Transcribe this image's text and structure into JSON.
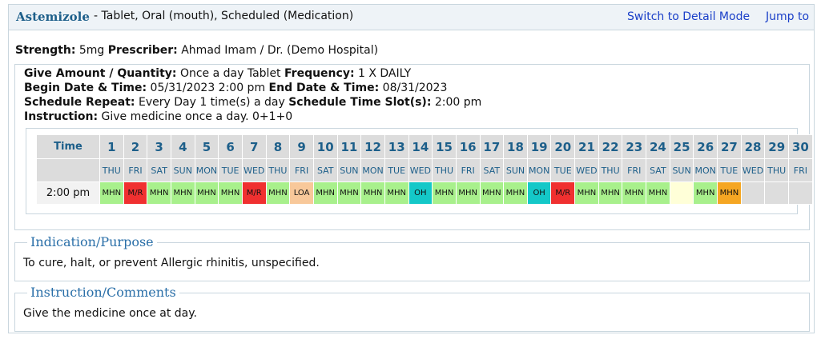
{
  "header": {
    "drug": "Astemizole",
    "description": "- Tablet, Oral (mouth), Scheduled (Medication)",
    "links": [
      "Switch to Detail Mode",
      "Jump to"
    ]
  },
  "summary": [
    {
      "label": "Strength:",
      "value": "5mg"
    },
    {
      "label": "Prescriber:",
      "value": "Ahmad Imam / Dr. (Demo Hospital)"
    }
  ],
  "details": [
    [
      {
        "label": "Give Amount / Quantity:",
        "value": "Once a day Tablet"
      },
      {
        "label": "Frequency:",
        "value": "1 X DAILY"
      }
    ],
    [
      {
        "label": "Begin Date & Time:",
        "value": "05/31/2023 2:00 pm"
      },
      {
        "label": "End Date & Time:",
        "value": "08/31/2023"
      }
    ],
    [
      {
        "label": "Schedule Repeat:",
        "value": "Every Day 1 time(s) a day"
      },
      {
        "label": "Schedule Time Slot(s):",
        "value": "2:00 pm"
      }
    ],
    [
      {
        "label": "Instruction:",
        "value": "Give medicine once a day. 0+1+0"
      }
    ]
  ],
  "schedule": {
    "time_header": "Time",
    "days": [
      "1",
      "2",
      "3",
      "4",
      "5",
      "6",
      "7",
      "8",
      "9",
      "10",
      "11",
      "12",
      "13",
      "14",
      "15",
      "16",
      "17",
      "18",
      "19",
      "20",
      "21",
      "22",
      "23",
      "24",
      "25",
      "26",
      "27",
      "28",
      "29",
      "30"
    ],
    "weekdays": [
      "THU",
      "FRI",
      "SAT",
      "SUN",
      "MON",
      "TUE",
      "WED",
      "THU",
      "FRI",
      "SAT",
      "SUN",
      "MON",
      "TUE",
      "WED",
      "THU",
      "FRI",
      "SAT",
      "SUN",
      "MON",
      "TUE",
      "WED",
      "THU",
      "FRI",
      "SAT",
      "SUN",
      "MON",
      "TUE",
      "WED",
      "THU",
      "FRI"
    ],
    "rows": [
      {
        "time": "2:00 pm",
        "cells": [
          {
            "status": "MHN",
            "color": "#a8f08c"
          },
          {
            "status": "M/R",
            "color": "#f03030"
          },
          {
            "status": "MHN",
            "color": "#a8f08c"
          },
          {
            "status": "MHN",
            "color": "#a8f08c"
          },
          {
            "status": "MHN",
            "color": "#a8f08c"
          },
          {
            "status": "MHN",
            "color": "#a8f08c"
          },
          {
            "status": "M/R",
            "color": "#f03030"
          },
          {
            "status": "MHN",
            "color": "#a8f08c"
          },
          {
            "status": "LOA",
            "color": "#f8c89a"
          },
          {
            "status": "MHN",
            "color": "#a8f08c"
          },
          {
            "status": "MHN",
            "color": "#a8f08c"
          },
          {
            "status": "MHN",
            "color": "#a8f08c"
          },
          {
            "status": "MHN",
            "color": "#a8f08c"
          },
          {
            "status": "OH",
            "color": "#14c8c8"
          },
          {
            "status": "MHN",
            "color": "#a8f08c"
          },
          {
            "status": "MHN",
            "color": "#a8f08c"
          },
          {
            "status": "MHN",
            "color": "#a8f08c"
          },
          {
            "status": "MHN",
            "color": "#a8f08c"
          },
          {
            "status": "OH",
            "color": "#14c8c8"
          },
          {
            "status": "M/R",
            "color": "#f03030"
          },
          {
            "status": "MHN",
            "color": "#a8f08c"
          },
          {
            "status": "MHN",
            "color": "#a8f08c"
          },
          {
            "status": "MHN",
            "color": "#a8f08c"
          },
          {
            "status": "MHN",
            "color": "#a8f08c"
          },
          {
            "status": null,
            "color": "#ffffd8"
          },
          {
            "status": "MHN",
            "color": "#a8f08c"
          },
          {
            "status": "MHN",
            "color": "#f5a623"
          },
          {
            "status": null,
            "color": "#dddddd"
          },
          {
            "status": null,
            "color": "#dddddd"
          },
          {
            "status": null,
            "color": "#dddddd"
          }
        ]
      }
    ]
  },
  "sections": [
    {
      "title": "Indication/Purpose",
      "text": "To cure, halt, or prevent Allergic rhinitis, unspecified."
    },
    {
      "title": "Instruction/Comments",
      "text": "Give the medicine once at day."
    }
  ]
}
